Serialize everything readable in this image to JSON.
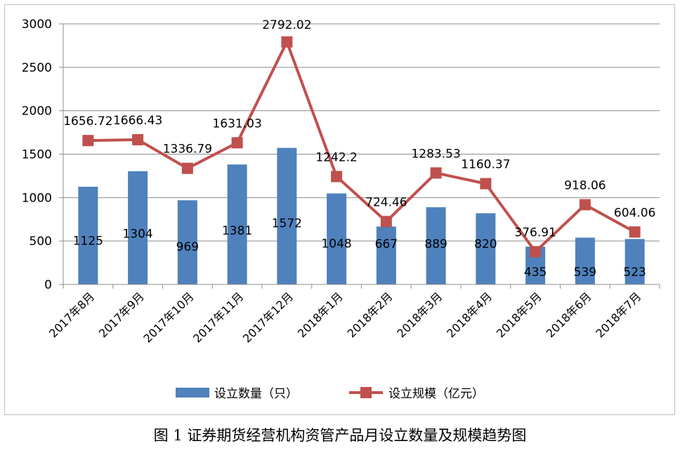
{
  "caption": "图 1  证券期货经营机构资管产品月设立数量及规模趋势图",
  "colors": {
    "bar": "#4f81bd",
    "line": "#c0504d",
    "marker": "#c0504d",
    "grid": "#8c8c8c"
  },
  "chart_data": {
    "type": "bar+line",
    "title": "",
    "xlabel": "",
    "ylabel": "",
    "ylim": [
      0,
      3000
    ],
    "yticks": [
      0,
      500,
      1000,
      1500,
      2000,
      2500,
      3000
    ],
    "grid": true,
    "legend_position": "bottom",
    "categories": [
      "2017年8月",
      "2017年9月",
      "2017年10月",
      "2017年11月",
      "2017年12月",
      "2018年1月",
      "2018年2月",
      "2018年3月",
      "2018年4月",
      "2018年5月",
      "2018年6月",
      "2018年7月"
    ],
    "series": [
      {
        "name": "设立数量（只）",
        "type": "bar",
        "values": [
          1125,
          1304,
          969,
          1381,
          1572,
          1048,
          667,
          889,
          820,
          435,
          539,
          523
        ],
        "labels": [
          "1125",
          "1304",
          "969",
          "1381",
          "1572",
          "1048",
          "667",
          "889",
          "820",
          "435",
          "539",
          "523"
        ]
      },
      {
        "name": "设立规模（亿元）",
        "type": "line",
        "values": [
          1656.72,
          1666.43,
          1336.79,
          1631.03,
          2792.02,
          1242.2,
          724.46,
          1283.53,
          1160.37,
          376.91,
          918.06,
          604.06
        ],
        "labels": [
          "1656.72",
          "1666.43",
          "1336.79",
          "1631.03",
          "2792.02",
          "1242.2",
          "724.46",
          "1283.53",
          "1160.37",
          "376.91",
          "918.06",
          "604.06"
        ]
      }
    ]
  }
}
